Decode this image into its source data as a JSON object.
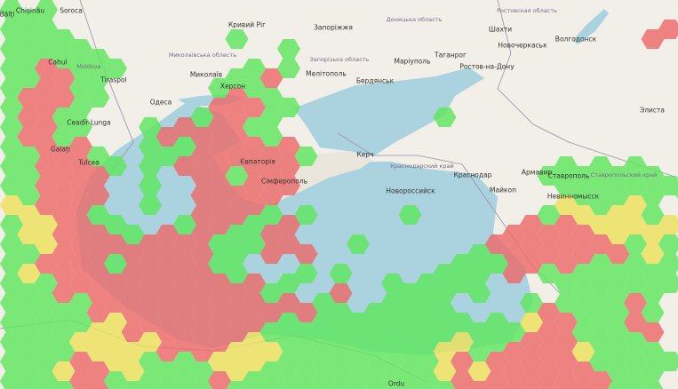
{
  "map": {
    "colors": {
      "land": "#f2efe9",
      "sea": "#aad3df",
      "border": "#9b8fa8",
      "hex_green": "#5ee65e",
      "hex_red": "#ec6a6a",
      "hex_yellow": "#ece25c"
    },
    "hex_levels": {
      "g": "green",
      "r": "red",
      "y": "yellow"
    },
    "hex_grid": [
      "ggg",
      "gggg.........g.......................rr",
      "gggggg..........g",
      "ggrrggg......ggrg",
      "grrrgg......grgg",
      "grrgg......grrrgg........g",
      "grrgg...grrrrrgg",
      "ggrrrg..gggrrrrrrg",
      "ggrrrrg.g.rrrgrrr..............ggggggg",
      "ggrrrr..g..rrrrrr...............gggggggg",
      "yyrrrg..g..rrrrg.g.....g.......gyygyyg",
      "gyyrrrgg.rgrrggrr............rrrrryyyyy",
      "ggyrrrrrrrrrgggrrr..g......grrrrrrrrgyg",
      "gyrrrrgrrrrrgg...g.g.....ggggrrgrgggggg",
      "gggrrrrrrrrrrrrgg..r..gggggg....ggggggg",
      "gggggrrrrrrrrrrrrrgg.ggggg....grggggrg",
      "gggggyyrrrrrrrrgggggggggggggggyrrgggrr",
      "ggggyyyyyrrrryyygggggggggyyggrrrrygggg",
      "gggyrryyggggyyyggggggggggyryrrrrrrggggg",
      "ggggrrggggggrgggggggggggggrrrrrrrrrggg"
    ],
    "labels": [
      "Кривий Ріг",
      "Запоріжжя",
      "Миколаїв",
      "Миколаївська область",
      "Херсон",
      "Одеса",
      "Мелітополь",
      "Запорізька область",
      "Маріуполь",
      "Бердянськ",
      "Донецька область",
      "Таганрог",
      "Ростов-на-Дону",
      "Шахти",
      "Новочеркаськ",
      "Ростовская область",
      "Волгодонск",
      "Элиста",
      "Керч",
      "Сімферополь",
      "Євпаторія",
      "Краснодарский край",
      "Краснодар",
      "Новороссийск",
      "Армавир",
      "Ставрополь",
      "Ставропольский край",
      "Майкоп",
      "Невинномысск",
      "Chișinău",
      "Moldova",
      "Tiraspol",
      "Cahul",
      "Galați",
      "Tulcea",
      "Ceadîr-Lunga",
      "Bălți",
      "Soroca",
      "Ordu"
    ]
  }
}
